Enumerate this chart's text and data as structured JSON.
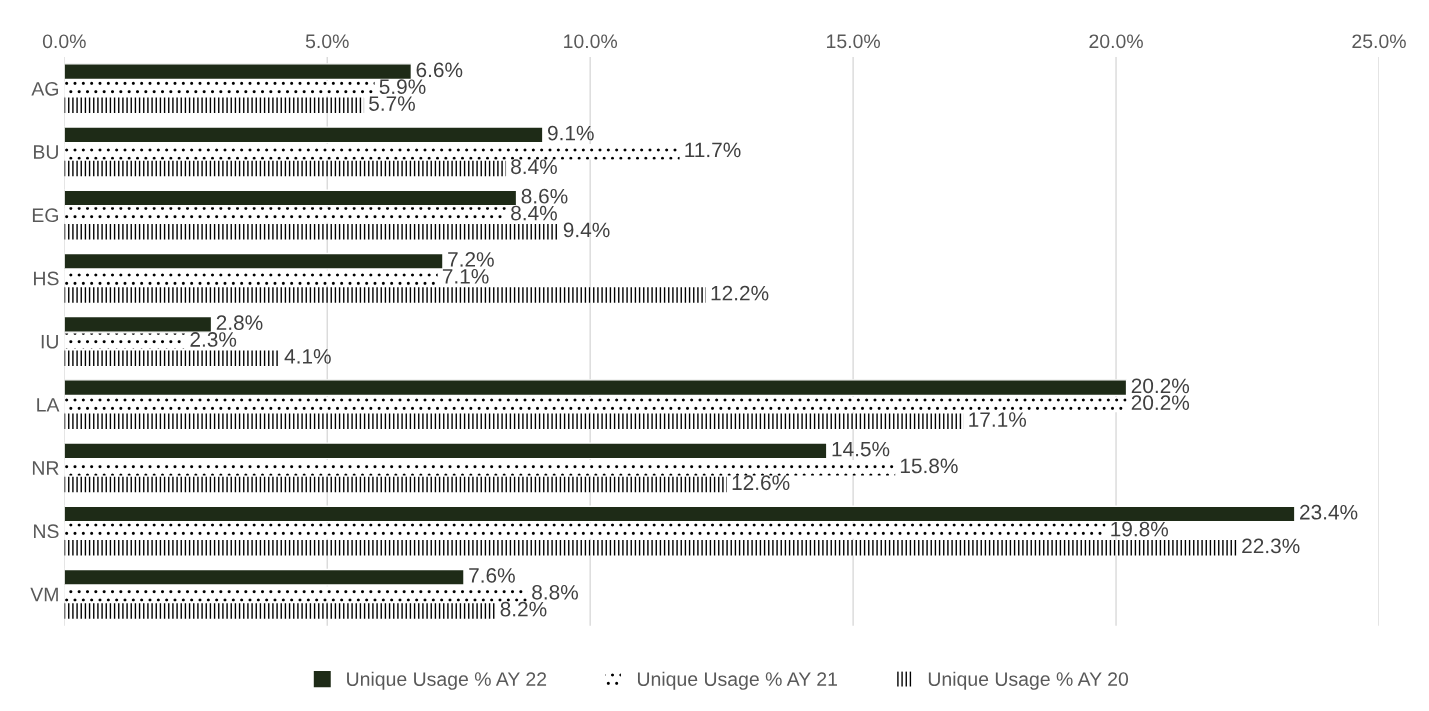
{
  "chart_data": {
    "type": "bar",
    "orientation": "horizontal",
    "categories": [
      "AG",
      "BU",
      "EG",
      "HS",
      "IU",
      "LA",
      "NR",
      "NS",
      "VM"
    ],
    "series": [
      {
        "name": "Unique Usage % AY 22",
        "color": "#1e2b17",
        "values": [
          6.6,
          9.1,
          8.6,
          7.2,
          2.8,
          20.2,
          14.5,
          23.4,
          7.6
        ],
        "value_labels": [
          "6.6%",
          "9.1%",
          "8.6%",
          "7.2%",
          "2.8%",
          "20.2%",
          "14.5%",
          "23.4%",
          "7.6%"
        ]
      },
      {
        "name": "Unique Usage % AY 21",
        "color": "#000000",
        "values": [
          5.9,
          11.7,
          8.4,
          7.1,
          2.3,
          20.2,
          15.8,
          19.8,
          8.8
        ],
        "value_labels": [
          "5.9%",
          "11.7%",
          "8.4%",
          "7.1%",
          "2.3%",
          "20.2%",
          "15.8%",
          "19.8%",
          "8.8%"
        ]
      },
      {
        "name": "Unique Usage % AY 20",
        "color": "#000000",
        "values": [
          5.7,
          8.4,
          9.4,
          12.2,
          4.1,
          17.1,
          12.6,
          22.3,
          8.2
        ],
        "value_labels": [
          "5.7%",
          "8.4%",
          "9.4%",
          "12.2%",
          "4.1%",
          "17.1%",
          "12.6%",
          "22.3%",
          "8.2%"
        ]
      }
    ],
    "xlim": [
      0,
      25
    ],
    "xticks": [
      {
        "value": 0,
        "label": "0.0%"
      },
      {
        "value": 5,
        "label": "5.0%"
      },
      {
        "value": 10,
        "label": "10.0%"
      },
      {
        "value": 15,
        "label": "15.0%"
      },
      {
        "value": 20,
        "label": "20.0%"
      },
      {
        "value": 25,
        "label": "25.0%"
      }
    ],
    "grid": "x",
    "legend": "bottom"
  }
}
